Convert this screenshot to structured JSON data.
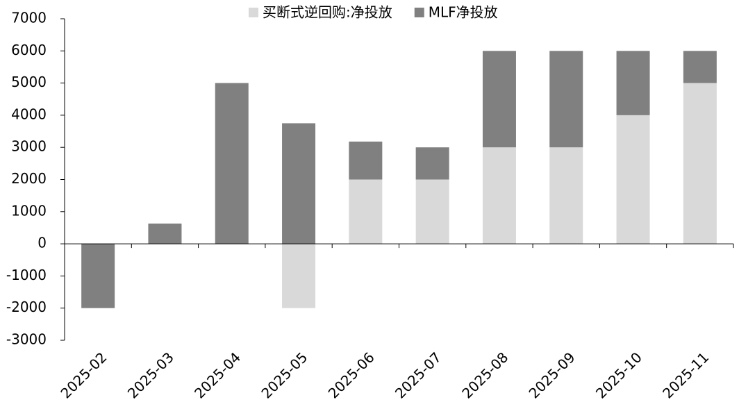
{
  "chart_data": {
    "type": "stacked_bar",
    "categories": [
      "2025-02",
      "2025-03",
      "2025-04",
      "2025-05",
      "2025-06",
      "2025-07",
      "2025-08",
      "2025-09",
      "2025-10",
      "2025-11"
    ],
    "series": [
      {
        "name": "买断式逆回购:净投放",
        "color": "#d9d9d9",
        "values": [
          0,
          0,
          0,
          -2000,
          2000,
          2000,
          3000,
          3000,
          4000,
          5000
        ]
      },
      {
        "name": "MLF净投放",
        "color": "#808080",
        "values": [
          -2000,
          630,
          5000,
          3750,
          1180,
          1000,
          3000,
          3000,
          2000,
          1000
        ]
      }
    ],
    "ylim": [
      -3000,
      7000
    ],
    "yticks": [
      -3000,
      -2000,
      -1000,
      0,
      1000,
      2000,
      3000,
      4000,
      5000,
      6000,
      7000
    ],
    "legend": "top"
  }
}
